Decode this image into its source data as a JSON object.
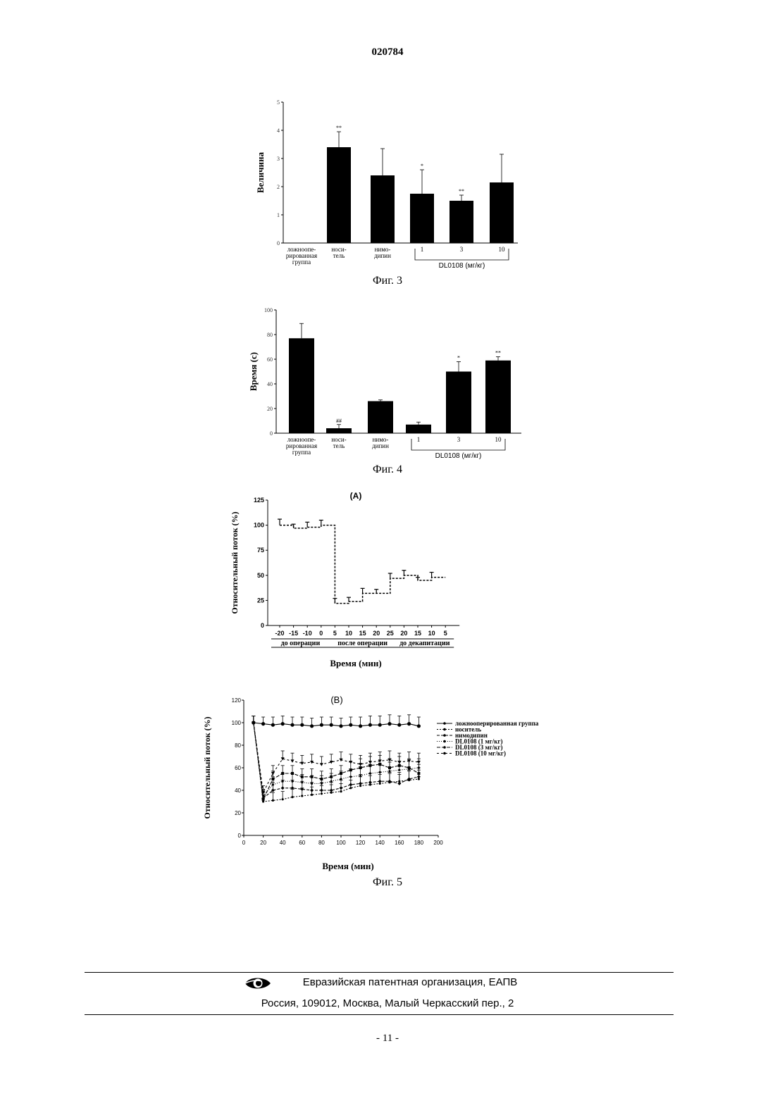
{
  "header": {
    "doc_number": "020784"
  },
  "figures": [
    {
      "caption": "Фиг. 3"
    },
    {
      "caption": "Фиг. 4"
    },
    {
      "caption": "Фиг. 5"
    }
  ],
  "chart_data": [
    {
      "type": "bar",
      "ylabel": "Величина",
      "ylim": [
        0,
        5
      ],
      "yticks": [
        "0",
        "1",
        "2",
        "3",
        "4",
        "5"
      ],
      "categories": [
        [
          "ложноопе-",
          "рированная",
          "группа"
        ],
        [
          "носи-",
          "тель"
        ],
        [
          "нимо-",
          "дипин"
        ],
        [
          "1"
        ],
        [
          "3"
        ],
        [
          "10"
        ]
      ],
      "values": [
        0,
        3.4,
        2.4,
        1.75,
        1.5,
        2.15
      ],
      "errors": [
        0,
        0.55,
        0.95,
        0.85,
        0.2,
        1.0
      ],
      "annotations": [
        "",
        "**",
        "",
        "*",
        "**",
        ""
      ],
      "group_label": "DL0108 (мг/кг)"
    },
    {
      "type": "bar",
      "ylabel": "Время (с)",
      "ylim": [
        0,
        100
      ],
      "yticks": [
        "0",
        "20",
        "40",
        "60",
        "80",
        "100"
      ],
      "categories": [
        [
          "ложноопе-",
          "рированная",
          "группа"
        ],
        [
          "носи-",
          "тель"
        ],
        [
          "нимо-",
          "дипин"
        ],
        [
          "1"
        ],
        [
          "3"
        ],
        [
          "10"
        ]
      ],
      "values": [
        77,
        4,
        26,
        7,
        50,
        59
      ],
      "errors": [
        12,
        3,
        1,
        2,
        8,
        3
      ],
      "annotations": [
        "",
        "##",
        "",
        "",
        "*",
        "**"
      ],
      "group_label": "DL0108 (мг/кг)"
    },
    {
      "type": "line",
      "title": "(A)",
      "ylabel": "Относительный поток (%)",
      "xlabel": "Время (мин)",
      "ylim": [
        0,
        125
      ],
      "yticks": [
        "0",
        "25",
        "50",
        "75",
        "100",
        "125"
      ],
      "xticks": [
        "-20",
        "-15",
        "-10",
        "0",
        "5",
        "10",
        "15",
        "20",
        "25",
        "20",
        "15",
        "10",
        "5"
      ],
      "segments": [
        "до операции",
        "после операции",
        "до декапитации"
      ],
      "values": [
        100,
        97,
        98,
        100,
        22,
        24,
        32,
        32,
        47,
        50,
        45,
        48
      ],
      "errors": [
        6,
        4,
        5,
        5,
        5,
        4,
        5,
        4,
        5,
        5,
        3,
        5
      ]
    },
    {
      "type": "line",
      "title": "(B)",
      "ylabel": "Относительный поток (%)",
      "xlabel": "Время (мин)",
      "xlim": [
        0,
        200
      ],
      "ylim": [
        0,
        120
      ],
      "xticks": [
        "0",
        "20",
        "40",
        "60",
        "80",
        "100",
        "120",
        "140",
        "160",
        "180",
        "200"
      ],
      "yticks": [
        "0",
        "20",
        "40",
        "60",
        "80",
        "100",
        "120"
      ],
      "x": [
        10,
        20,
        30,
        40,
        50,
        60,
        70,
        80,
        90,
        100,
        110,
        120,
        130,
        140,
        150,
        160,
        170,
        180
      ],
      "series": [
        {
          "name": "ложнооперированная группа",
          "values": [
            100,
            99,
            98,
            99,
            98,
            98,
            97,
            98,
            98,
            97,
            98,
            97,
            98,
            98,
            99,
            98,
            99,
            97
          ]
        },
        {
          "name": "носитель",
          "values": [
            100,
            30,
            31,
            32,
            34,
            35,
            36,
            37,
            38,
            39,
            42,
            44,
            45,
            46,
            47,
            48,
            49,
            50
          ]
        },
        {
          "name": "нимодипин",
          "values": [
            100,
            33,
            40,
            42,
            42,
            41,
            40,
            40,
            40,
            42,
            45,
            46,
            47,
            48,
            48,
            46,
            50,
            52
          ]
        },
        {
          "name": "DL0108 (1 мг/кг)",
          "values": [
            100,
            35,
            45,
            48,
            48,
            47,
            46,
            46,
            48,
            50,
            52,
            53,
            55,
            56,
            57,
            58,
            59,
            60
          ]
        },
        {
          "name": "DL0108 (3 мг/кг)",
          "values": [
            100,
            32,
            50,
            55,
            55,
            52,
            52,
            50,
            52,
            55,
            58,
            60,
            62,
            63,
            60,
            62,
            60,
            55
          ]
        },
        {
          "name": "DL0108 (10 мг/кг)",
          "values": [
            100,
            38,
            55,
            68,
            66,
            64,
            65,
            63,
            65,
            67,
            65,
            63,
            65,
            66,
            67,
            65,
            66,
            65
          ]
        }
      ],
      "errors": [
        6,
        6,
        7,
        7,
        7,
        7,
        7,
        7,
        7,
        7,
        7,
        8,
        8,
        8,
        8,
        8,
        8,
        8
      ]
    }
  ],
  "footer": {
    "org": "Евразийская патентная организация, ЕАПВ",
    "address": "Россия, 109012, Москва, Малый Черкасский пер., 2",
    "logo": "eapo-eye-logo"
  },
  "page_number": "- 11 -"
}
